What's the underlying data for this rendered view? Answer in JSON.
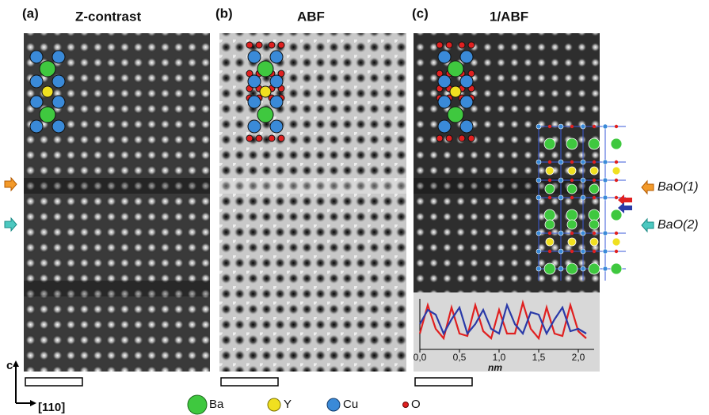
{
  "panels": [
    {
      "label": "(a)",
      "title": "Z-contrast"
    },
    {
      "label": "(b)",
      "title": "ABF"
    },
    {
      "label": "(c)",
      "title": "1/ABF"
    }
  ],
  "annotations": {
    "layer_1": "BaO(1)",
    "layer_2": "BaO(2)"
  },
  "axes_icon": {
    "vertical": "c",
    "horizontal": "[110]"
  },
  "legend": [
    "Ba",
    "Y",
    "Cu",
    "O"
  ],
  "inset": {
    "xlabel": "nm",
    "xticks": [
      {
        "value": 0,
        "label": "0,0"
      },
      {
        "value": 0.5,
        "label": "0,5"
      },
      {
        "value": 1,
        "label": "1,0"
      },
      {
        "value": 1.5,
        "label": "1,5"
      },
      {
        "value": 2,
        "label": "2,0"
      }
    ],
    "xlim": [
      0,
      2.2
    ],
    "ylim": [
      0,
      1
    ],
    "x": [
      0,
      0.1,
      0.2,
      0.3,
      0.4,
      0.5,
      0.6,
      0.7,
      0.8,
      0.9,
      1.0,
      1.1,
      1.2,
      1.3,
      1.4,
      1.5,
      1.6,
      1.7,
      1.8,
      1.9,
      2.0,
      2.1
    ],
    "series": [
      {
        "color": "#e02020",
        "values": [
          0.3,
          0.9,
          0.4,
          0.2,
          0.85,
          0.3,
          0.25,
          0.9,
          0.35,
          0.2,
          0.8,
          0.3,
          0.3,
          0.95,
          0.4,
          0.2,
          0.85,
          0.3,
          0.25,
          0.9,
          0.35,
          0.2
        ]
      },
      {
        "color": "#2a3aa8",
        "values": [
          0.5,
          0.8,
          0.7,
          0.3,
          0.6,
          0.85,
          0.3,
          0.5,
          0.8,
          0.4,
          0.3,
          0.9,
          0.5,
          0.3,
          0.75,
          0.7,
          0.3,
          0.6,
          0.85,
          0.35,
          0.4,
          0.3
        ]
      }
    ]
  }
}
